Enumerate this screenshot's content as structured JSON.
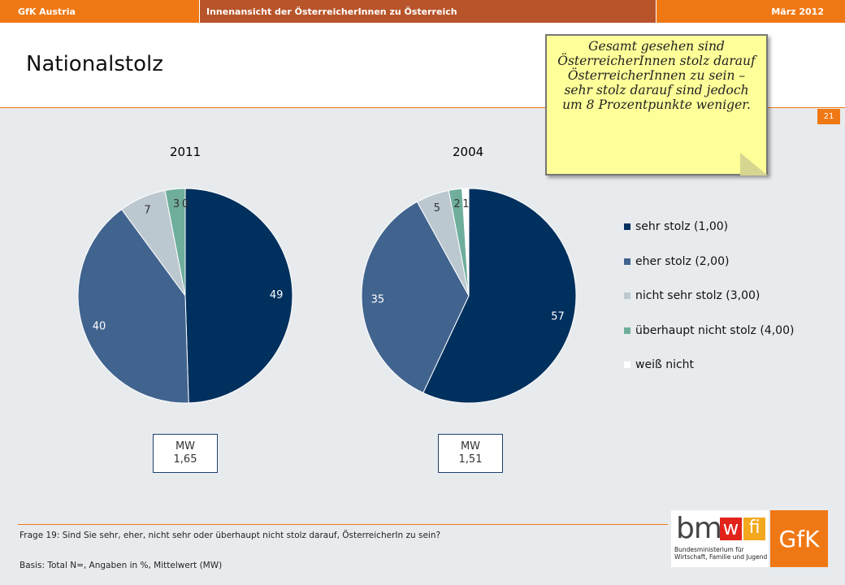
{
  "topbar": {
    "left": "GfK Austria",
    "center": "Innenansicht der ÖsterreicherInnen zu Österreich",
    "right": "März 2012"
  },
  "title": "Nationalstolz",
  "page_number": "21",
  "callout": "Gesamt gesehen sind ÖsterreicherInnen stolz darauf ÖsterreicherInnen zu sein – sehr stolz darauf sind jedoch um 8 Prozentpunkte weniger.",
  "chart_data": [
    {
      "type": "pie",
      "title": "2011",
      "categories": [
        "sehr stolz (1,00)",
        "eher stolz (2,00)",
        "nicht sehr stolz (3,00)",
        "überhaupt nicht stolz (4,00)",
        "weiß nicht"
      ],
      "values": [
        49,
        40,
        7,
        3,
        0
      ],
      "mean_label": "MW",
      "mean_value": "1,65"
    },
    {
      "type": "pie",
      "title": "2004",
      "categories": [
        "sehr stolz (1,00)",
        "eher stolz (2,00)",
        "nicht sehr stolz (3,00)",
        "überhaupt nicht stolz (4,00)",
        "weiß nicht"
      ],
      "values": [
        57,
        35,
        5,
        2,
        1
      ],
      "mean_label": "MW",
      "mean_value": "1,51"
    }
  ],
  "legend": [
    {
      "label": "sehr stolz (1,00)",
      "color": "#00305e"
    },
    {
      "label": "eher stolz (2,00)",
      "color": "#41648f"
    },
    {
      "label": "nicht sehr stolz (3,00)",
      "color": "#bcc8d0"
    },
    {
      "label": "überhaupt nicht stolz (4,00)",
      "color": "#6fae9c"
    },
    {
      "label": "weiß nicht",
      "color": "#ffffff"
    }
  ],
  "footer": {
    "question": "Frage 19: Sind Sie sehr, eher, nicht sehr oder überhaupt nicht stolz darauf, ÖsterreicherIn zu sein?",
    "basis": "Basis: Total N=, Angaben in %, Mittelwert (MW)"
  },
  "logos": {
    "bm": "bm",
    "w": "w",
    "fi": "fi",
    "ministry_line1": "Bundesministerium für",
    "ministry_line2": "Wirtschaft, Familie und Jugend",
    "gfk": "GfK"
  }
}
